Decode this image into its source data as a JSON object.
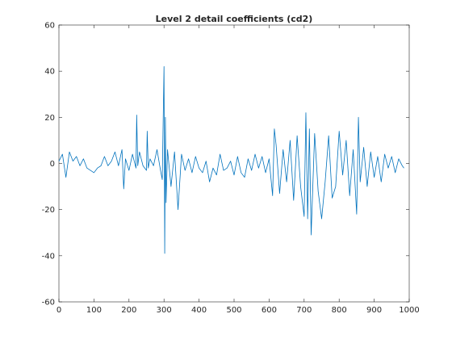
{
  "chart_data": {
    "type": "line",
    "title": "Level 2 detail coefficients (cd2)",
    "xlabel": "",
    "ylabel": "",
    "xlim": [
      0,
      1000
    ],
    "ylim": [
      -60,
      60
    ],
    "xticks": [
      0,
      100,
      200,
      300,
      400,
      500,
      600,
      700,
      800,
      900,
      1000
    ],
    "yticks": [
      -60,
      -40,
      -20,
      0,
      20,
      40,
      60
    ],
    "grid": false,
    "legend": "none",
    "series_color": "#0072bd",
    "series": [
      {
        "x": [
          0,
          10,
          20,
          30,
          40,
          50,
          60,
          70,
          80,
          90,
          100,
          110,
          120,
          130,
          140,
          150,
          160,
          170,
          180,
          185,
          190,
          200,
          210,
          220,
          222,
          225,
          230,
          240,
          250,
          252,
          255,
          260,
          270,
          280,
          290,
          295,
          300,
          302,
          304,
          306,
          310,
          320,
          330,
          340,
          350,
          360,
          370,
          380,
          390,
          400,
          410,
          420,
          430,
          440,
          450,
          460,
          470,
          480,
          490,
          500,
          510,
          520,
          530,
          540,
          550,
          560,
          570,
          580,
          590,
          600,
          610,
          615,
          620,
          630,
          640,
          650,
          660,
          670,
          680,
          690,
          700,
          705,
          710,
          715,
          720,
          730,
          740,
          750,
          760,
          770,
          780,
          790,
          800,
          810,
          820,
          830,
          840,
          850,
          855,
          860,
          870,
          880,
          890,
          900,
          910,
          920,
          930,
          940,
          950,
          960,
          970,
          980,
          985
        ],
        "y": [
          1,
          4,
          -6,
          5,
          1,
          3,
          -1,
          2,
          -2,
          -3,
          -4,
          -2,
          -1,
          3,
          -1,
          1,
          5,
          -1,
          6,
          -11,
          2,
          -3,
          4,
          -2,
          21,
          -1,
          5,
          -1,
          -3,
          14,
          -2,
          2,
          -1,
          6,
          -3,
          -7,
          42,
          -39,
          20,
          -17,
          6,
          -10,
          5,
          -20,
          4,
          -3,
          2,
          -4,
          3,
          -2,
          -4,
          1,
          -8,
          -2,
          -5,
          4,
          -3,
          -2,
          1,
          -5,
          3,
          -4,
          -6,
          2,
          -3,
          4,
          -2,
          3,
          -4,
          2,
          -14,
          15,
          8,
          -13,
          6,
          -8,
          10,
          -16,
          12,
          -10,
          -23,
          22,
          -24,
          15,
          -31,
          13,
          -12,
          -24,
          -8,
          12,
          -15,
          -10,
          14,
          -5,
          10,
          -14,
          6,
          -22,
          20,
          -8,
          7,
          -10,
          5,
          -6,
          3,
          -8,
          4,
          -2,
          3,
          -4,
          2,
          -1,
          -2
        ]
      }
    ]
  }
}
